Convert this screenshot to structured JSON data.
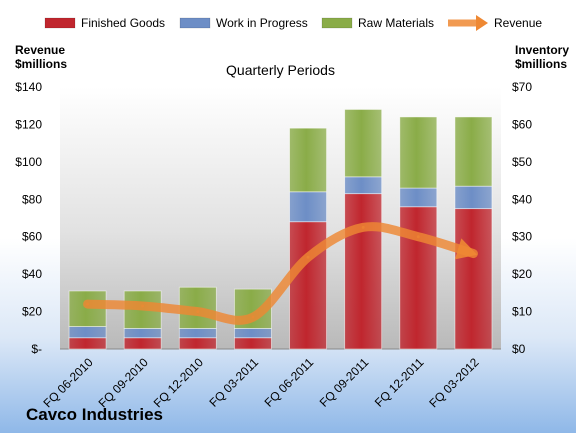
{
  "chart_data": {
    "type": "bar",
    "subtype": "stacked bar with line overlay",
    "title": "Quarterly Periods",
    "company": "Cavco Industries",
    "categories": [
      "FQ 06-2010",
      "FQ 09-2010",
      "FQ 12-2010",
      "FQ 03-2011",
      "FQ 06-2011",
      "FQ 09-2011",
      "FQ 12-2011",
      "FQ 03-2012"
    ],
    "series": [
      {
        "name": "Finished Goods",
        "axis": "right",
        "color": "#c0262e",
        "values": [
          3,
          3,
          3,
          3,
          34,
          41.5,
          38,
          37.5
        ]
      },
      {
        "name": "Work in Progress",
        "axis": "right",
        "color": "#6d8ec6",
        "values": [
          3,
          2.5,
          2.5,
          2.5,
          8,
          4.5,
          5,
          6
        ]
      },
      {
        "name": "Raw Materials",
        "axis": "right",
        "color": "#8aac48",
        "values": [
          9.5,
          10,
          11,
          10.5,
          17,
          18,
          19,
          18.5
        ]
      },
      {
        "name": "Revenue",
        "axis": "left",
        "type": "line",
        "color": "#ee8833",
        "values": [
          24,
          23,
          20,
          17,
          49,
          65,
          60,
          51
        ]
      }
    ],
    "left_axis": {
      "label": "Revenue $millions",
      "label_lines": [
        "Revenue",
        "$millions"
      ],
      "min": 0,
      "max": 140,
      "step": 20,
      "tick_labels": [
        "$-",
        "$20",
        "$40",
        "$60",
        "$80",
        "$100",
        "$120",
        "$140"
      ]
    },
    "right_axis": {
      "label": "Inventory $millions",
      "label_lines": [
        "Inventory",
        "$millions"
      ],
      "min": 0,
      "max": 70,
      "step": 10,
      "tick_labels": [
        "$0",
        "$10",
        "$20",
        "$30",
        "$40",
        "$50",
        "$60",
        "$70"
      ]
    },
    "legend": {
      "placement": "top",
      "items": [
        "Finished Goods",
        "Work in Progress",
        "Raw Materials",
        "Revenue"
      ]
    },
    "grid": false
  }
}
